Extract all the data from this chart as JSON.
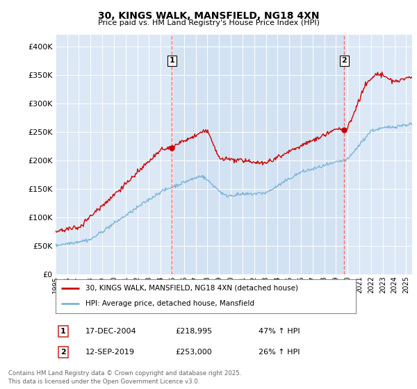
{
  "title": "30, KINGS WALK, MANSFIELD, NG18 4XN",
  "subtitle": "Price paid vs. HM Land Registry's House Price Index (HPI)",
  "legend_line1": "30, KINGS WALK, MANSFIELD, NG18 4XN (detached house)",
  "legend_line2": "HPI: Average price, detached house, Mansfield",
  "annotation1_label": "1",
  "annotation1_date": "17-DEC-2004",
  "annotation1_price": "£218,995",
  "annotation1_hpi": "47% ↑ HPI",
  "annotation2_label": "2",
  "annotation2_date": "12-SEP-2019",
  "annotation2_price": "£253,000",
  "annotation2_hpi": "26% ↑ HPI",
  "footer": "Contains HM Land Registry data © Crown copyright and database right 2025.\nThis data is licensed under the Open Government Licence v3.0.",
  "hpi_color": "#7ab4d8",
  "price_color": "#cc0000",
  "vline_color": "#ff6666",
  "bg_shaded_color": "#dce8f5",
  "plot_bg_color": "#dce8f5",
  "ylim": [
    0,
    420000
  ],
  "xlim_start": 1995,
  "xlim_end": 2025.5,
  "sale1_year": 2004.96,
  "sale1_price": 218995,
  "sale2_year": 2019.71,
  "sale2_price": 253000
}
